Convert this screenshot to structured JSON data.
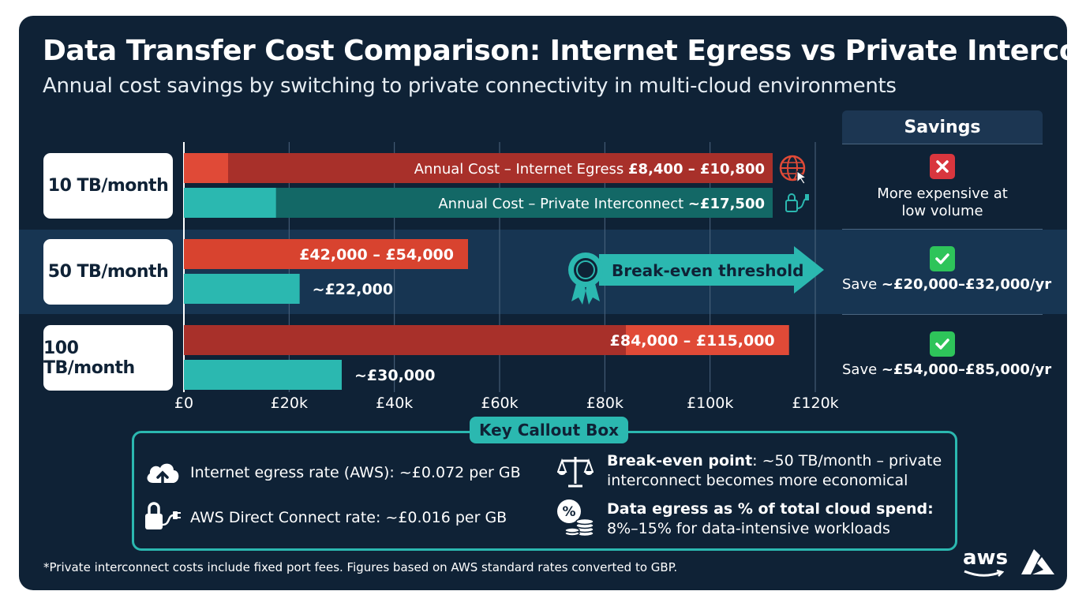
{
  "title": "Data Transfer Cost Comparison: Internet Egress vs Private Interconnect",
  "subtitle": "Annual cost savings by switching to private connectivity in multi-cloud environments",
  "colors": {
    "background": "#0f2236",
    "egress": "#c63c2e",
    "egress_light": "#e04a37",
    "interconnect": "#177a78",
    "interconnect_light": "#2bb8b0",
    "check": "#2ec45a",
    "cross": "#d9363e"
  },
  "chart_data": {
    "type": "bar",
    "orientation": "horizontal",
    "categories": [
      "10 TB/month",
      "50 TB/month",
      "100 TB/month"
    ],
    "series": [
      {
        "name": "Annual Cost – Internet Egress",
        "values": [
          [
            8400,
            10800
          ],
          [
            42000,
            54000
          ],
          [
            84000,
            115000
          ]
        ],
        "labels": [
          "£8,400 – £10,800",
          "£42,000 – £54,000",
          "£84,000 – £115,000"
        ]
      },
      {
        "name": "Annual Cost – Private Interconnect",
        "values": [
          17500,
          22000,
          30000
        ],
        "labels": [
          "~£17,500",
          "~£22,000",
          "~£30,000"
        ]
      }
    ],
    "row1_text": {
      "egress": "Annual Cost – Internet Egress",
      "interconnect": "Annual Cost – Private Interconnect"
    },
    "xticks": [
      "£0",
      "£20k",
      "£40k",
      "£60k",
      "£80k",
      "£100k",
      "£120k"
    ],
    "xlim": [
      0,
      120000
    ],
    "annotation": "Break-even threshold",
    "grid": true
  },
  "savings": {
    "header": "Savings",
    "rows": [
      {
        "status": "cross",
        "text": "More expensive at low volume"
      },
      {
        "status": "check",
        "prefix": "Save ",
        "amount": "~£20,000–£32,000/yr"
      },
      {
        "status": "check",
        "prefix": "Save ",
        "amount": "~£54,000–£85,000/yr"
      }
    ]
  },
  "callout": {
    "title": "Key Callout Box",
    "items": [
      {
        "icon": "cloud-upload-icon",
        "text": "Internet egress rate (AWS): ~£0.072 per GB"
      },
      {
        "icon": "lock-plug-icon",
        "text": "AWS Direct Connect rate: ~£0.016 per GB"
      },
      {
        "icon": "scales-icon",
        "bold": "Break-even point",
        "text": ": ~50 TB/month – private",
        "line2": "interconnect becomes more economical"
      },
      {
        "icon": "percent-coins-icon",
        "bold": "Data egress as % of total cloud spend:",
        "line2": "8%–15% for data-intensive workloads"
      }
    ]
  },
  "footnote": "*Private interconnect costs include fixed port fees. Figures based on AWS standard rates converted to GBP.",
  "logos": {
    "aws": "aws"
  }
}
